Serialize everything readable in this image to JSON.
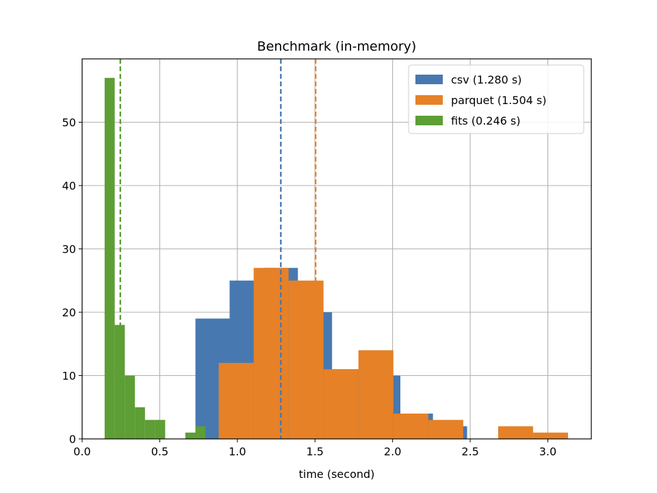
{
  "chart_data": {
    "type": "bar",
    "subtype": "histogram",
    "title": "Benchmark (in-memory)",
    "xlabel": "time (second)",
    "ylabel": "",
    "xlim": [
      0.0,
      3.28
    ],
    "ylim": [
      0,
      60
    ],
    "xticks": [
      0.0,
      0.5,
      1.0,
      1.5,
      2.0,
      2.5,
      3.0
    ],
    "xtick_labels": [
      "0.0",
      "0.5",
      "1.0",
      "1.5",
      "2.0",
      "2.5",
      "3.0"
    ],
    "yticks": [
      0,
      10,
      20,
      30,
      40,
      50
    ],
    "ytick_labels": [
      "0",
      "10",
      "20",
      "30",
      "40",
      "50"
    ],
    "grid": true,
    "legend_position": "top-right",
    "series": [
      {
        "name": "csv (1.280 s)",
        "color": "#4878b0",
        "mean": 1.28,
        "bins": [
          {
            "x0": 0.73,
            "x1": 0.95,
            "count": 19
          },
          {
            "x0": 0.95,
            "x1": 1.17,
            "count": 25
          },
          {
            "x0": 1.17,
            "x1": 1.39,
            "count": 27
          },
          {
            "x0": 1.39,
            "x1": 1.61,
            "count": 20
          },
          {
            "x0": 1.61,
            "x1": 1.83,
            "count": 11
          },
          {
            "x0": 1.83,
            "x1": 2.05,
            "count": 10
          },
          {
            "x0": 2.05,
            "x1": 2.26,
            "count": 4
          },
          {
            "x0": 2.26,
            "x1": 2.48,
            "count": 2
          }
        ]
      },
      {
        "name": "parquet (1.504 s)",
        "color": "#e68127",
        "mean": 1.504,
        "bins": [
          {
            "x0": 0.88,
            "x1": 1.105,
            "count": 12
          },
          {
            "x0": 1.105,
            "x1": 1.33,
            "count": 27
          },
          {
            "x0": 1.33,
            "x1": 1.555,
            "count": 25
          },
          {
            "x0": 1.555,
            "x1": 1.78,
            "count": 11
          },
          {
            "x0": 1.78,
            "x1": 2.005,
            "count": 14
          },
          {
            "x0": 2.005,
            "x1": 2.23,
            "count": 4
          },
          {
            "x0": 2.23,
            "x1": 2.455,
            "count": 3
          },
          {
            "x0": 2.455,
            "x1": 2.68,
            "count": 0
          },
          {
            "x0": 2.68,
            "x1": 2.905,
            "count": 2
          },
          {
            "x0": 2.905,
            "x1": 3.13,
            "count": 1
          }
        ]
      },
      {
        "name": "fits (0.246 s)",
        "color": "#5d9e35",
        "mean": 0.246,
        "bins": [
          {
            "x0": 0.145,
            "x1": 0.21,
            "count": 57
          },
          {
            "x0": 0.21,
            "x1": 0.275,
            "count": 18
          },
          {
            "x0": 0.275,
            "x1": 0.34,
            "count": 10
          },
          {
            "x0": 0.34,
            "x1": 0.405,
            "count": 5
          },
          {
            "x0": 0.405,
            "x1": 0.47,
            "count": 3
          },
          {
            "x0": 0.47,
            "x1": 0.535,
            "count": 3
          },
          {
            "x0": 0.535,
            "x1": 0.6,
            "count": 0
          },
          {
            "x0": 0.6,
            "x1": 0.665,
            "count": 0
          },
          {
            "x0": 0.665,
            "x1": 0.73,
            "count": 1
          },
          {
            "x0": 0.73,
            "x1": 0.795,
            "count": 2
          }
        ]
      }
    ]
  }
}
